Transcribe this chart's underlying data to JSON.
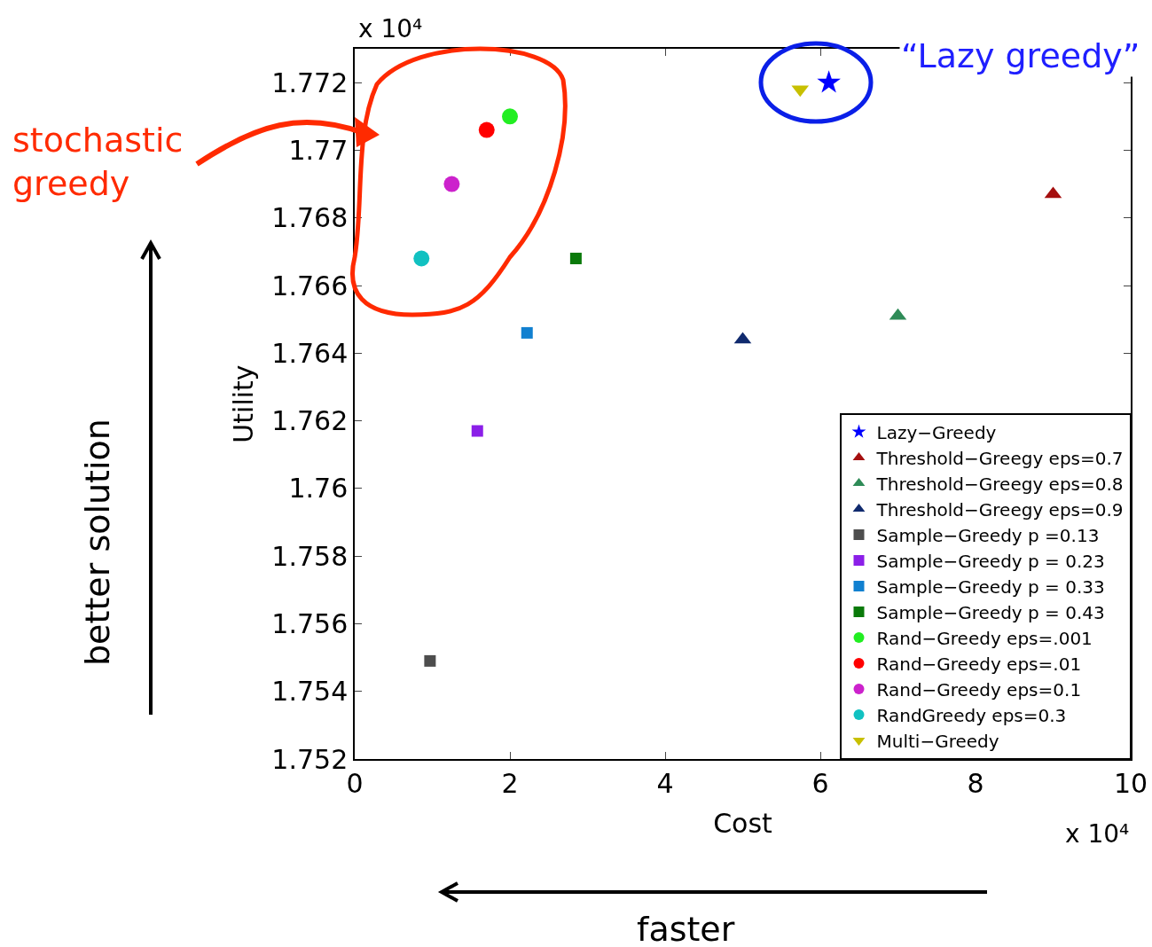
{
  "chart_data": {
    "type": "scatter",
    "xlabel": "Cost",
    "ylabel": "Utility",
    "xlim": [
      0,
      10
    ],
    "xticks": [
      0,
      2,
      4,
      6,
      8,
      10
    ],
    "ylim": [
      1.752,
      1.773
    ],
    "yticks": [
      1.752,
      1.754,
      1.756,
      1.758,
      1.76,
      1.762,
      1.764,
      1.766,
      1.768,
      1.77,
      1.772
    ],
    "grid": false,
    "legend": "bottom right",
    "series": [
      {
        "name": "Lazy−Greedy",
        "color": "#0000ff",
        "marker": "star",
        "x": [
          6.11
        ],
        "values": [
          1.772
        ]
      },
      {
        "name": "Threshold−Greegy eps=0.7",
        "color": "#a50f0f",
        "marker": "triangle",
        "x": [
          9.0
        ],
        "values": [
          1.7687
        ]
      },
      {
        "name": "Threshold−Greegy eps=0.8",
        "color": "#2e8b57",
        "marker": "triangle",
        "x": [
          7.0
        ],
        "values": [
          1.7651
        ]
      },
      {
        "name": "Threshold−Greegy eps=0.9",
        "color": "#102a6e",
        "marker": "triangle",
        "x": [
          5.0
        ],
        "values": [
          1.7644
        ]
      },
      {
        "name": "Sample−Greedy p =0.13",
        "color": "#4d4d4d",
        "marker": "square",
        "x": [
          0.97
        ],
        "values": [
          1.7549
        ]
      },
      {
        "name": "Sample−Greedy p = 0.23",
        "color": "#8b1fe8",
        "marker": "square",
        "x": [
          1.58
        ],
        "values": [
          1.7617
        ]
      },
      {
        "name": "Sample−Greedy p = 0.33",
        "color": "#1180d0",
        "marker": "square",
        "x": [
          2.22
        ],
        "values": [
          1.7646
        ]
      },
      {
        "name": "Sample−Greedy p = 0.43",
        "color": "#0a7a0a",
        "marker": "square",
        "x": [
          2.85
        ],
        "values": [
          1.7668
        ]
      },
      {
        "name": "Rand−Greedy eps=.001",
        "color": "#22ee22",
        "marker": "circle",
        "x": [
          2.0
        ],
        "values": [
          1.771
        ]
      },
      {
        "name": "Rand−Greedy eps=.01",
        "color": "#ff0000",
        "marker": "circle",
        "x": [
          1.7
        ],
        "values": [
          1.7706
        ]
      },
      {
        "name": "Rand−Greedy eps=0.1",
        "color": "#cc22cc",
        "marker": "circle",
        "x": [
          1.25
        ],
        "values": [
          1.769
        ]
      },
      {
        "name": "RandGreedy eps=0.3",
        "color": "#11c1c1",
        "marker": "circle",
        "x": [
          0.86
        ],
        "values": [
          1.7668
        ]
      },
      {
        "name": "Multi−Greedy",
        "color": "#c8c000",
        "marker": "triangle-down",
        "x": [
          5.74
        ],
        "values": [
          1.7718
        ]
      }
    ],
    "annotations": [
      "x 10⁴",
      "x 10⁴",
      "“Lazy greedy”",
      "stochastic greedy",
      "better solution",
      "faster"
    ]
  }
}
